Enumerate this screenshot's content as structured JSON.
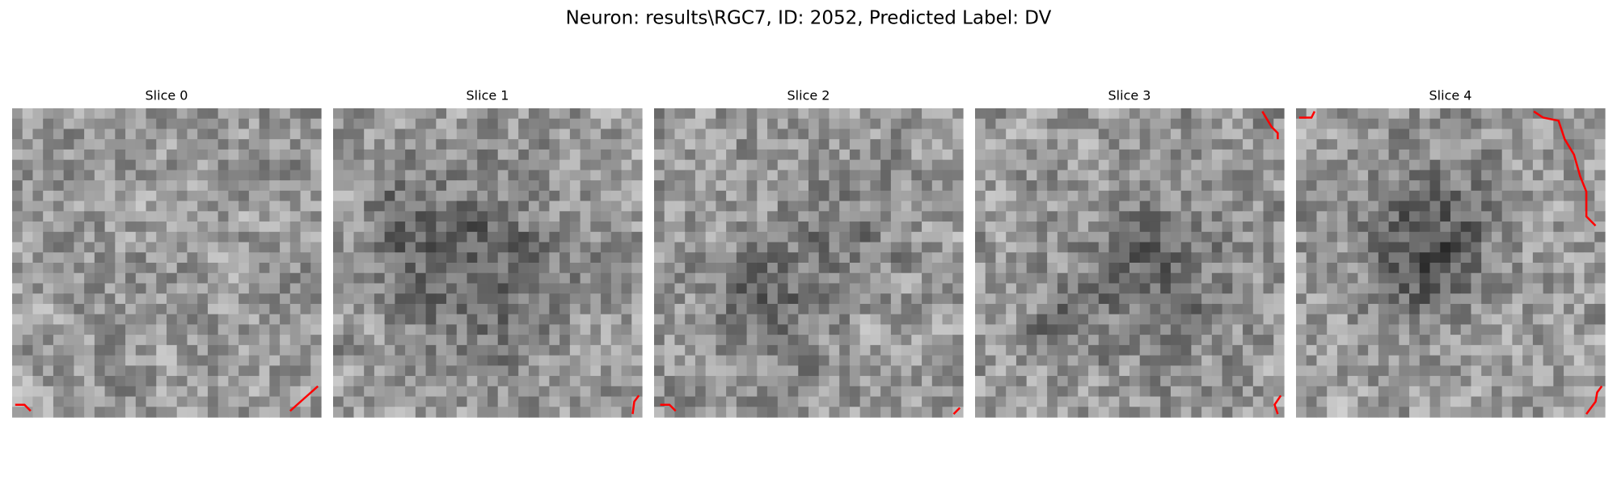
{
  "title": "Neuron: results\\RGC7, ID: 2052, Predicted Label: DV",
  "panels": [
    {
      "title": "Slice 0"
    },
    {
      "title": "Slice 1"
    },
    {
      "title": "Slice 2"
    },
    {
      "title": "Slice 3"
    },
    {
      "title": "Slice 4"
    }
  ]
}
